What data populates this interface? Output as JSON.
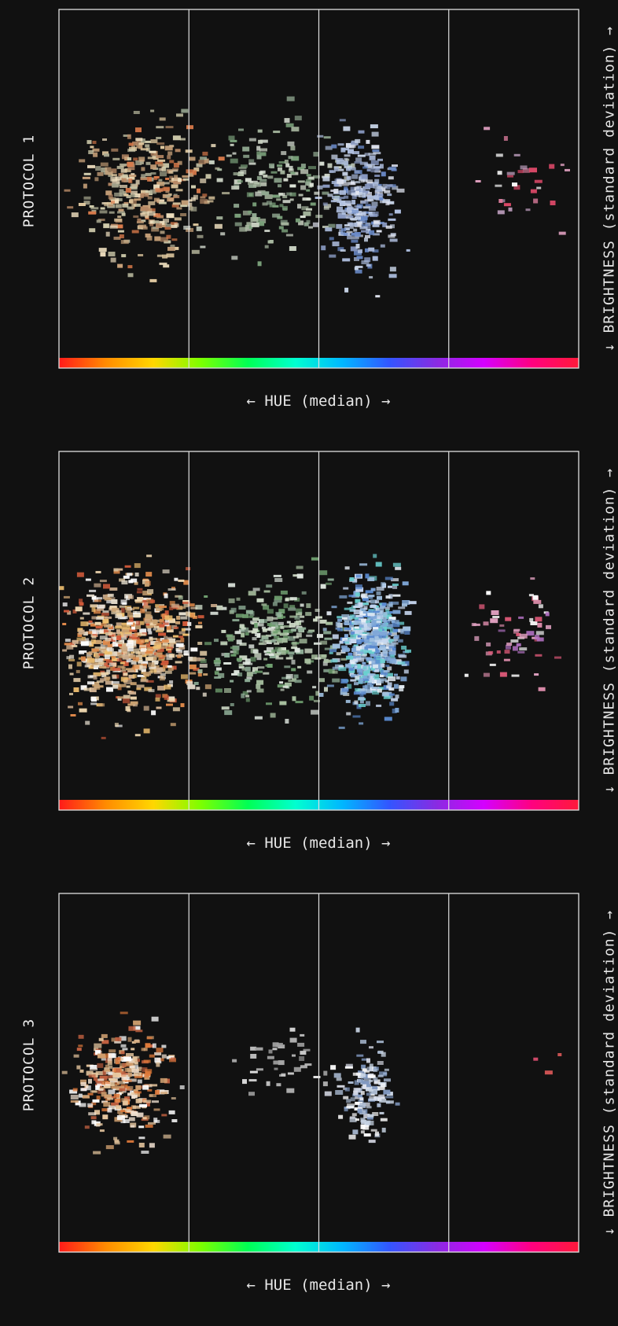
{
  "x_axis_label": "← HUE (median) →",
  "y_axis_label": "↓ BRIGHTNESS (standard deviation) →",
  "chart_data": [
    {
      "type": "scatter",
      "title": "PROTOCOL 1",
      "xlabel": "← HUE (median) →",
      "ylabel": "↓ BRIGHTNESS (standard deviation) →",
      "grid": "vertical quarter lines",
      "colorbar": "hue spectrum along x axis",
      "clusters": [
        {
          "hue_center": 0.17,
          "brightness_center": 0.52,
          "spread_x": 0.11,
          "spread_y": 0.17,
          "count": 360,
          "palette": [
            "#c9a27a",
            "#e0c9a0",
            "#b88a66",
            "#d4d0b0",
            "#a8a890",
            "#f0e0c0",
            "#d97a4a"
          ]
        },
        {
          "hue_center": 0.42,
          "brightness_center": 0.52,
          "spread_x": 0.12,
          "spread_y": 0.16,
          "count": 190,
          "palette": [
            "#a8b8a0",
            "#c8d0c0",
            "#7aa07a",
            "#dde4d8",
            "#90a890"
          ]
        },
        {
          "hue_center": 0.58,
          "brightness_center": 0.55,
          "spread_x": 0.06,
          "spread_y": 0.17,
          "count": 310,
          "palette": [
            "#a8b8d8",
            "#c8d4e8",
            "#6a8ac8",
            "#e0e4f0",
            "#8898c0",
            "#b0c0e0"
          ]
        },
        {
          "hue_center": 0.88,
          "brightness_center": 0.5,
          "spread_x": 0.08,
          "spread_y": 0.12,
          "count": 30,
          "palette": [
            "#d87a9a",
            "#e0a0c0",
            "#ffffff",
            "#c0a0c0",
            "#e04a6a"
          ]
        }
      ]
    },
    {
      "type": "scatter",
      "title": "PROTOCOL 2",
      "xlabel": "← HUE (median) →",
      "ylabel": "↓ BRIGHTNESS (standard deviation) →",
      "grid": "vertical quarter lines",
      "colorbar": "hue spectrum along x axis",
      "clusters": [
        {
          "hue_center": 0.14,
          "brightness_center": 0.55,
          "spread_x": 0.11,
          "spread_y": 0.17,
          "count": 700,
          "palette": [
            "#e08a4a",
            "#f0c070",
            "#d0b090",
            "#e8e0d0",
            "#c8a070",
            "#f0d8b0",
            "#d05a3a",
            "#ffffff"
          ]
        },
        {
          "hue_center": 0.42,
          "brightness_center": 0.55,
          "spread_x": 0.12,
          "spread_y": 0.16,
          "count": 320,
          "palette": [
            "#a8c0a0",
            "#d0dcc8",
            "#70a070",
            "#e0e8e0",
            "#90b098"
          ]
        },
        {
          "hue_center": 0.6,
          "brightness_center": 0.55,
          "spread_x": 0.06,
          "spread_y": 0.16,
          "count": 600,
          "palette": [
            "#a0c0e0",
            "#c8d8f0",
            "#5a8ad0",
            "#e8f0f8",
            "#80a8d8",
            "#6ad0d0"
          ]
        },
        {
          "hue_center": 0.88,
          "brightness_center": 0.53,
          "spread_x": 0.08,
          "spread_y": 0.11,
          "count": 60,
          "palette": [
            "#d88aa8",
            "#e0a0c0",
            "#ffffff",
            "#b070c0",
            "#e05a7a"
          ]
        }
      ]
    },
    {
      "type": "scatter",
      "title": "PROTOCOL 3",
      "xlabel": "← HUE (median) →",
      "ylabel": "↓ BRIGHTNESS (standard deviation) →",
      "grid": "vertical quarter lines",
      "colorbar": "hue spectrum along x axis",
      "clusters": [
        {
          "hue_center": 0.12,
          "brightness_center": 0.55,
          "spread_x": 0.08,
          "spread_y": 0.14,
          "count": 330,
          "palette": [
            "#e07a3a",
            "#d0a070",
            "#e8c8a0",
            "#c06040",
            "#f0e0d0",
            "#ffffff"
          ]
        },
        {
          "hue_center": 0.42,
          "brightness_center": 0.48,
          "spread_x": 0.08,
          "spread_y": 0.07,
          "count": 40,
          "palette": [
            "#c0c0c0",
            "#d8d8d8",
            "#a0a0a0",
            "#ffffff"
          ]
        },
        {
          "hue_center": 0.59,
          "brightness_center": 0.57,
          "spread_x": 0.045,
          "spread_y": 0.11,
          "count": 150,
          "palette": [
            "#a8b8d0",
            "#c8d4e4",
            "#8098c0",
            "#e0e4f0",
            "#ffffff"
          ]
        },
        {
          "hue_center": 0.93,
          "brightness_center": 0.45,
          "spread_x": 0.03,
          "spread_y": 0.1,
          "count": 3,
          "palette": [
            "#e05a5a",
            "#d04a6a"
          ]
        }
      ]
    }
  ],
  "colors": {
    "background": "#111111",
    "frame": "#e0e0e0",
    "text": "#e6e6e6",
    "hue_bar": [
      "#ff1a1a",
      "#ff8c00",
      "#ffd700",
      "#7cff00",
      "#00ff55",
      "#00ffd0",
      "#00b7ff",
      "#3355ff",
      "#8a2be2",
      "#d400ff",
      "#ff0080",
      "#ff1a3a"
    ]
  }
}
